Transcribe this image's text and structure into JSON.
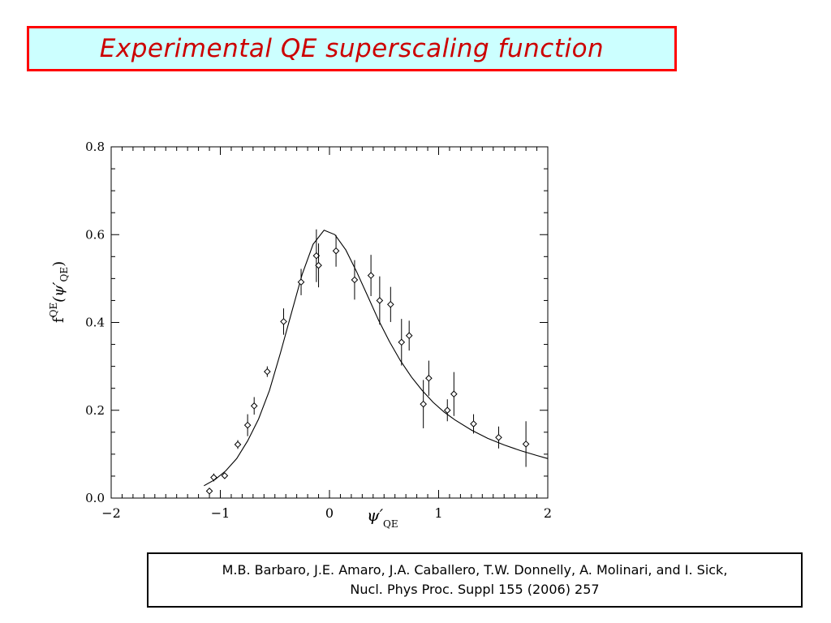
{
  "slide": {
    "title": "Experimental QE superscaling  function",
    "reference_line1": "M.B. Barbaro, J.E. Amaro, J.A.  Caballero, T.W. Donnelly, A. Molinari, and I. Sick,",
    "reference_line2": "Nucl. Phys Proc. Suppl 155 (2006) 257"
  },
  "colors": {
    "title_text": "#cc0000",
    "title_background": "#ccffff",
    "title_border": "#ff0000",
    "plot_ink": "#000000"
  },
  "chart_data": {
    "type": "scatter",
    "title": "",
    "xlabel_main": "ψ′",
    "xlabel_sub": "QE",
    "ylabel_main": "f",
    "ylabel_sup": "QE",
    "ylabel_arg": "(ψ′",
    "ylabel_arg_sub": "QE",
    "ylabel_close": ")",
    "xlim": [
      -2,
      2
    ],
    "ylim": [
      0,
      0.8
    ],
    "x_ticks": [
      -2,
      -1,
      0,
      1,
      2
    ],
    "x_tick_labels": [
      "−2",
      "−1",
      "0",
      "1",
      "2"
    ],
    "y_ticks": [
      0,
      0.2,
      0.4,
      0.6,
      0.8
    ],
    "y_tick_labels": [
      "0.0",
      "0.2",
      "0.4",
      "0.6",
      "0.8"
    ],
    "grid": false,
    "marker": "diamond",
    "series": [
      {
        "kind": "points_with_errorbars",
        "points": [
          {
            "x": -1.1,
            "y": 0.016,
            "err": 0.004
          },
          {
            "x": -1.06,
            "y": 0.047,
            "err": 0.009
          },
          {
            "x": -0.96,
            "y": 0.051,
            "err": 0.006
          },
          {
            "x": -0.84,
            "y": 0.122,
            "err": 0.01
          },
          {
            "x": -0.75,
            "y": 0.166,
            "err": 0.025
          },
          {
            "x": -0.69,
            "y": 0.21,
            "err": 0.02
          },
          {
            "x": -0.57,
            "y": 0.288,
            "err": 0.012
          },
          {
            "x": -0.42,
            "y": 0.402,
            "err": 0.03
          },
          {
            "x": -0.26,
            "y": 0.492,
            "err": 0.03
          },
          {
            "x": -0.12,
            "y": 0.552,
            "err": 0.06
          },
          {
            "x": -0.1,
            "y": 0.53,
            "err": 0.05
          },
          {
            "x": 0.06,
            "y": 0.563,
            "err": 0.036
          },
          {
            "x": 0.23,
            "y": 0.497,
            "err": 0.045
          },
          {
            "x": 0.38,
            "y": 0.507,
            "err": 0.047
          },
          {
            "x": 0.46,
            "y": 0.45,
            "err": 0.055
          },
          {
            "x": 0.56,
            "y": 0.441,
            "err": 0.04
          },
          {
            "x": 0.66,
            "y": 0.355,
            "err": 0.053
          },
          {
            "x": 0.73,
            "y": 0.37,
            "err": 0.034
          },
          {
            "x": 0.86,
            "y": 0.214,
            "err": 0.055
          },
          {
            "x": 0.91,
            "y": 0.273,
            "err": 0.04
          },
          {
            "x": 1.08,
            "y": 0.2,
            "err": 0.025
          },
          {
            "x": 1.14,
            "y": 0.237,
            "err": 0.05
          },
          {
            "x": 1.32,
            "y": 0.169,
            "err": 0.022
          },
          {
            "x": 1.55,
            "y": 0.138,
            "err": 0.025
          },
          {
            "x": 1.8,
            "y": 0.123,
            "err": 0.052
          }
        ]
      },
      {
        "kind": "curve",
        "x": [
          -1.15,
          -1.05,
          -0.95,
          -0.85,
          -0.75,
          -0.65,
          -0.55,
          -0.45,
          -0.35,
          -0.25,
          -0.15,
          -0.05,
          0.05,
          0.15,
          0.25,
          0.35,
          0.45,
          0.55,
          0.65,
          0.75,
          0.85,
          0.95,
          1.05,
          1.15,
          1.3,
          1.45,
          1.6,
          1.75,
          1.9,
          2.0
        ],
        "y": [
          0.028,
          0.042,
          0.062,
          0.09,
          0.13,
          0.18,
          0.245,
          0.33,
          0.42,
          0.51,
          0.578,
          0.61,
          0.6,
          0.565,
          0.515,
          0.46,
          0.405,
          0.356,
          0.313,
          0.276,
          0.245,
          0.218,
          0.196,
          0.178,
          0.155,
          0.136,
          0.121,
          0.108,
          0.097,
          0.09
        ]
      }
    ]
  }
}
